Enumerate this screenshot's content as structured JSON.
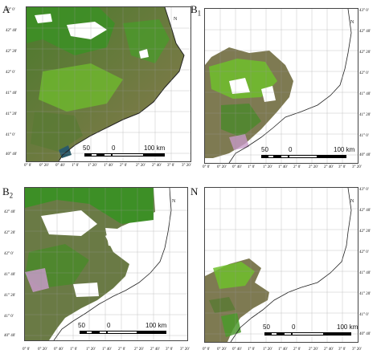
{
  "panels": [
    {
      "label": "A",
      "sub": "",
      "lat_labels": [
        "43° 0'",
        "42° 40'",
        "42° 20'",
        "42° 0'",
        "41° 40'",
        "41° 20'",
        "41° 0'",
        "40° 40'"
      ],
      "lon_labels": [
        "0° 0'",
        "0° 20'",
        "0° 40'",
        "1° 0'",
        "1° 20'",
        "1° 40'",
        "2° 0'",
        "2° 20'",
        "2° 40'",
        "3° 0'",
        "3° 20'"
      ]
    },
    {
      "label": "B",
      "sub": "1",
      "lat_labels": [
        "43° 0'",
        "42° 40'",
        "42° 20'",
        "42° 0'",
        "41° 40'",
        "41° 20'",
        "41° 0'",
        "40° 40'"
      ],
      "lon_labels": [
        "0° 0'",
        "0° 20'",
        "0° 40'",
        "1° 0'",
        "1° 20'",
        "1° 40'",
        "2° 0'",
        "2° 20'",
        "2° 40'",
        "3° 0'",
        "3° 20'"
      ]
    },
    {
      "label": "B",
      "sub": "2",
      "lat_labels": [
        "42° 40'",
        "42° 20'",
        "42° 0'",
        "41° 40'",
        "41° 20'",
        "41° 0'",
        "40° 40'"
      ],
      "lon_labels": [
        "0° 0'",
        "0° 20'",
        "0° 40'",
        "1° 0'",
        "1° 20'",
        "1° 40'",
        "2° 0'",
        "2° 20'",
        "2° 40'",
        "3° 0'",
        "3° 20'"
      ]
    },
    {
      "label": "N",
      "sub": "",
      "lat_labels": [
        "43° 0'",
        "42° 40'",
        "42° 20'",
        "42° 0'",
        "41° 40'",
        "41° 20'",
        "41° 0'",
        "40° 40'"
      ],
      "lon_labels": [
        "0° 0'",
        "0° 20'",
        "0° 40'",
        "1° 0'",
        "1° 20'",
        "1° 40'",
        "2° 0'",
        "2° 20'",
        "2° 40'",
        "3° 0'",
        "3° 20'"
      ]
    }
  ],
  "scale_bar": {
    "left": "50",
    "mid": "0",
    "right": "100 km"
  },
  "north_label": "N",
  "colors": {
    "vegetation": "#3f8a22",
    "bright_vegetation": "#6fbf2c",
    "soil": "#8a7a50",
    "sea": "#ffffff",
    "cloud": "#ffffff",
    "coast": "#222222",
    "pink": "#c79ac8"
  }
}
